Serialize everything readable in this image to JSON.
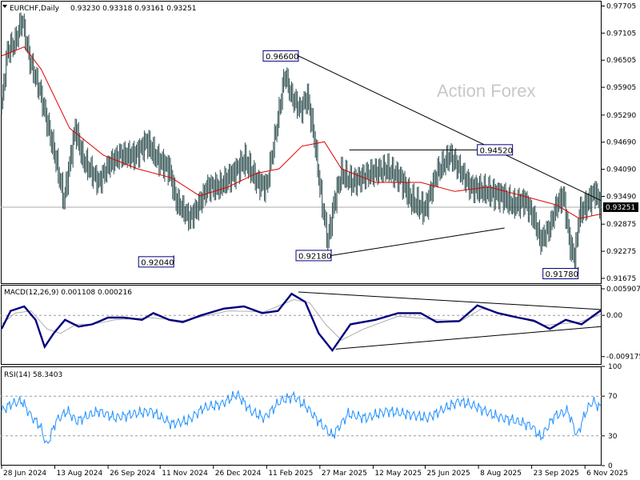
{
  "header": {
    "title": "EURCHF,Daily",
    "ohlc": "0.93230 0.93318 0.93161 0.93251"
  },
  "watermark": "Action Forex",
  "colors": {
    "candle": "#2f4f4f",
    "ma": "#e00000",
    "macd": "#00007f",
    "signal": "#b0b0b0",
    "rsi": "#1e90ff",
    "trend": "#000000",
    "annotation_box": "#00007f"
  },
  "chart_data": [
    {
      "type": "bar",
      "name": "price",
      "symbol": "EURCHF",
      "timeframe": "Daily",
      "ylim": [
        0.9155,
        0.9782
      ],
      "y_ticks": [
        "0.97705",
        "0.97105",
        "0.96505",
        "0.95905",
        "0.95290",
        "0.94690",
        "0.94090",
        "0.93490",
        "0.92875",
        "0.92275",
        "0.91675"
      ],
      "current_price": "0.93251",
      "x_ticks": [
        "28 Jun 2024",
        "13 Aug 2024",
        "26 Sep 2024",
        "11 Nov 2024",
        "26 Dec 2024",
        "11 Feb 2025",
        "27 Mar 2025",
        "12 May 2025",
        "25 Jun 2025",
        "8 Aug 2025",
        "23 Sep 2025",
        "6 Nov 2025"
      ],
      "anchors": [
        {
          "x": 0,
          "y": 0.955
        },
        {
          "x": 5,
          "y": 0.967
        },
        {
          "x": 12,
          "y": 0.969
        },
        {
          "x": 18,
          "y": 0.974
        },
        {
          "x": 25,
          "y": 0.965
        },
        {
          "x": 34,
          "y": 0.958
        },
        {
          "x": 48,
          "y": 0.943
        },
        {
          "x": 55,
          "y": 0.934
        },
        {
          "x": 65,
          "y": 0.95
        },
        {
          "x": 72,
          "y": 0.943
        },
        {
          "x": 86,
          "y": 0.938
        },
        {
          "x": 95,
          "y": 0.942
        },
        {
          "x": 104,
          "y": 0.944
        },
        {
          "x": 118,
          "y": 0.944
        },
        {
          "x": 128,
          "y": 0.947
        },
        {
          "x": 138,
          "y": 0.943
        },
        {
          "x": 148,
          "y": 0.941
        },
        {
          "x": 154,
          "y": 0.934
        },
        {
          "x": 160,
          "y": 0.932
        },
        {
          "x": 166,
          "y": 0.93
        },
        {
          "x": 172,
          "y": 0.932
        },
        {
          "x": 182,
          "y": 0.937
        },
        {
          "x": 192,
          "y": 0.937
        },
        {
          "x": 205,
          "y": 0.94
        },
        {
          "x": 215,
          "y": 0.943
        },
        {
          "x": 226,
          "y": 0.938
        },
        {
          "x": 234,
          "y": 0.937
        },
        {
          "x": 244,
          "y": 0.952
        },
        {
          "x": 250,
          "y": 0.962
        },
        {
          "x": 256,
          "y": 0.957
        },
        {
          "x": 264,
          "y": 0.954
        },
        {
          "x": 270,
          "y": 0.957
        },
        {
          "x": 276,
          "y": 0.948
        },
        {
          "x": 282,
          "y": 0.935
        },
        {
          "x": 288,
          "y": 0.925
        },
        {
          "x": 294,
          "y": 0.934
        },
        {
          "x": 300,
          "y": 0.94
        },
        {
          "x": 310,
          "y": 0.938
        },
        {
          "x": 325,
          "y": 0.94
        },
        {
          "x": 340,
          "y": 0.941
        },
        {
          "x": 352,
          "y": 0.939
        },
        {
          "x": 362,
          "y": 0.934
        },
        {
          "x": 374,
          "y": 0.932
        },
        {
          "x": 384,
          "y": 0.94
        },
        {
          "x": 396,
          "y": 0.944
        },
        {
          "x": 404,
          "y": 0.941
        },
        {
          "x": 414,
          "y": 0.937
        },
        {
          "x": 428,
          "y": 0.936
        },
        {
          "x": 442,
          "y": 0.935
        },
        {
          "x": 452,
          "y": 0.933
        },
        {
          "x": 462,
          "y": 0.934
        },
        {
          "x": 470,
          "y": 0.93
        },
        {
          "x": 476,
          "y": 0.925
        },
        {
          "x": 484,
          "y": 0.928
        },
        {
          "x": 490,
          "y": 0.933
        },
        {
          "x": 496,
          "y": 0.935
        },
        {
          "x": 502,
          "y": 0.924
        },
        {
          "x": 506,
          "y": 0.921
        },
        {
          "x": 510,
          "y": 0.931
        },
        {
          "x": 516,
          "y": 0.933
        },
        {
          "x": 524,
          "y": 0.936
        },
        {
          "x": 529,
          "y": 0.9325
        }
      ],
      "ma": [
        {
          "x": 0,
          "y": 0.966
        },
        {
          "x": 20,
          "y": 0.968
        },
        {
          "x": 35,
          "y": 0.963
        },
        {
          "x": 60,
          "y": 0.95
        },
        {
          "x": 90,
          "y": 0.944
        },
        {
          "x": 120,
          "y": 0.941
        },
        {
          "x": 150,
          "y": 0.939
        },
        {
          "x": 175,
          "y": 0.935
        },
        {
          "x": 200,
          "y": 0.937
        },
        {
          "x": 225,
          "y": 0.94
        },
        {
          "x": 245,
          "y": 0.941
        },
        {
          "x": 265,
          "y": 0.946
        },
        {
          "x": 285,
          "y": 0.947
        },
        {
          "x": 300,
          "y": 0.941
        },
        {
          "x": 330,
          "y": 0.938
        },
        {
          "x": 370,
          "y": 0.938
        },
        {
          "x": 400,
          "y": 0.936
        },
        {
          "x": 430,
          "y": 0.937
        },
        {
          "x": 460,
          "y": 0.935
        },
        {
          "x": 490,
          "y": 0.933
        },
        {
          "x": 510,
          "y": 0.93
        },
        {
          "x": 529,
          "y": 0.931
        }
      ],
      "annotations": [
        {
          "text": "0.96600",
          "x": 262,
          "y": 0.966,
          "side": "left"
        },
        {
          "text": "0.94520",
          "x": 420,
          "y": 0.9452,
          "side": "right"
        },
        {
          "text": "0.92040",
          "x": 152,
          "y": 0.9204,
          "side": "left"
        },
        {
          "text": "0.92180",
          "x": 291,
          "y": 0.9218,
          "side": "left"
        },
        {
          "text": "0.91780",
          "x": 509,
          "y": 0.9178,
          "side": "left"
        }
      ],
      "trendlines": [
        {
          "x1": 262,
          "y1": 0.966,
          "x2": 529,
          "y2": 0.934
        },
        {
          "x1": 291,
          "y1": 0.9218,
          "x2": 444,
          "y2": 0.9279
        },
        {
          "x1": 307,
          "y1": 0.9452,
          "x2": 420,
          "y2": 0.9452
        }
      ]
    },
    {
      "type": "line",
      "name": "MACD(12,26,9)",
      "label": "MACD(12,26,9) 0.001108 0.000216",
      "ylim": [
        -0.011,
        0.0068
      ],
      "y_ticks": [
        "0.005907",
        "0.00",
        "-0.009175"
      ],
      "macd": [
        {
          "x": 0,
          "y": -0.003
        },
        {
          "x": 8,
          "y": 0.001
        },
        {
          "x": 20,
          "y": 0.002
        },
        {
          "x": 30,
          "y": -0.001
        },
        {
          "x": 38,
          "y": -0.007
        },
        {
          "x": 46,
          "y": -0.004
        },
        {
          "x": 56,
          "y": -0.001
        },
        {
          "x": 68,
          "y": -0.0025
        },
        {
          "x": 80,
          "y": -0.002
        },
        {
          "x": 94,
          "y": -0.0005
        },
        {
          "x": 108,
          "y": -0.0005
        },
        {
          "x": 124,
          "y": -0.001
        },
        {
          "x": 134,
          "y": 0.0005
        },
        {
          "x": 148,
          "y": -0.001
        },
        {
          "x": 160,
          "y": -0.0015
        },
        {
          "x": 176,
          "y": 0.0
        },
        {
          "x": 196,
          "y": 0.0015
        },
        {
          "x": 214,
          "y": 0.002
        },
        {
          "x": 230,
          "y": 0.0005
        },
        {
          "x": 244,
          "y": 0.001
        },
        {
          "x": 256,
          "y": 0.0048
        },
        {
          "x": 268,
          "y": 0.003
        },
        {
          "x": 280,
          "y": -0.004
        },
        {
          "x": 292,
          "y": -0.0078
        },
        {
          "x": 308,
          "y": -0.002
        },
        {
          "x": 330,
          "y": -0.001
        },
        {
          "x": 350,
          "y": 0.0005
        },
        {
          "x": 370,
          "y": 0.0005
        },
        {
          "x": 384,
          "y": -0.0015
        },
        {
          "x": 404,
          "y": -0.0013
        },
        {
          "x": 420,
          "y": 0.0022
        },
        {
          "x": 438,
          "y": 0.0005
        },
        {
          "x": 456,
          "y": -0.0005
        },
        {
          "x": 470,
          "y": -0.0012
        },
        {
          "x": 484,
          "y": -0.003
        },
        {
          "x": 498,
          "y": -0.001
        },
        {
          "x": 512,
          "y": -0.002
        },
        {
          "x": 529,
          "y": 0.0011
        }
      ],
      "signal": [
        {
          "x": 0,
          "y": -0.002
        },
        {
          "x": 12,
          "y": 0.0005
        },
        {
          "x": 26,
          "y": 0.001
        },
        {
          "x": 40,
          "y": -0.003
        },
        {
          "x": 52,
          "y": -0.004
        },
        {
          "x": 66,
          "y": -0.002
        },
        {
          "x": 80,
          "y": -0.002
        },
        {
          "x": 100,
          "y": -0.001
        },
        {
          "x": 130,
          "y": -0.0005
        },
        {
          "x": 160,
          "y": -0.0012
        },
        {
          "x": 200,
          "y": 0.001
        },
        {
          "x": 232,
          "y": 0.0008
        },
        {
          "x": 258,
          "y": 0.0035
        },
        {
          "x": 272,
          "y": 0.0028
        },
        {
          "x": 286,
          "y": -0.002
        },
        {
          "x": 300,
          "y": -0.0055
        },
        {
          "x": 320,
          "y": -0.003
        },
        {
          "x": 350,
          "y": -0.0002
        },
        {
          "x": 385,
          "y": -0.001
        },
        {
          "x": 406,
          "y": -0.0012
        },
        {
          "x": 424,
          "y": 0.0015
        },
        {
          "x": 450,
          "y": 0.0
        },
        {
          "x": 480,
          "y": -0.0022
        },
        {
          "x": 510,
          "y": -0.0015
        },
        {
          "x": 529,
          "y": 0.0002
        }
      ],
      "trendlines": [
        {
          "x1": 262,
          "y1": 0.0052,
          "x2": 529,
          "y2": 0.0013
        },
        {
          "x1": 295,
          "y1": -0.0075,
          "x2": 529,
          "y2": -0.0025
        }
      ]
    },
    {
      "type": "line",
      "name": "RSI(14)",
      "label": "RSI(14) 58.3403",
      "ylim": [
        0,
        100
      ],
      "y_ticks": [
        "100",
        "70",
        "30",
        "0"
      ],
      "guides": [
        70,
        30
      ],
      "values": [
        {
          "x": 0,
          "y": 55
        },
        {
          "x": 8,
          "y": 62
        },
        {
          "x": 18,
          "y": 65
        },
        {
          "x": 26,
          "y": 50
        },
        {
          "x": 34,
          "y": 40
        },
        {
          "x": 40,
          "y": 20
        },
        {
          "x": 48,
          "y": 45
        },
        {
          "x": 58,
          "y": 55
        },
        {
          "x": 66,
          "y": 45
        },
        {
          "x": 76,
          "y": 50
        },
        {
          "x": 86,
          "y": 55
        },
        {
          "x": 100,
          "y": 48
        },
        {
          "x": 116,
          "y": 52
        },
        {
          "x": 132,
          "y": 55
        },
        {
          "x": 150,
          "y": 42
        },
        {
          "x": 164,
          "y": 45
        },
        {
          "x": 178,
          "y": 58
        },
        {
          "x": 194,
          "y": 62
        },
        {
          "x": 208,
          "y": 72
        },
        {
          "x": 220,
          "y": 55
        },
        {
          "x": 232,
          "y": 48
        },
        {
          "x": 246,
          "y": 65
        },
        {
          "x": 258,
          "y": 70
        },
        {
          "x": 270,
          "y": 58
        },
        {
          "x": 282,
          "y": 42
        },
        {
          "x": 292,
          "y": 30
        },
        {
          "x": 306,
          "y": 52
        },
        {
          "x": 322,
          "y": 48
        },
        {
          "x": 340,
          "y": 55
        },
        {
          "x": 358,
          "y": 52
        },
        {
          "x": 376,
          "y": 48
        },
        {
          "x": 392,
          "y": 58
        },
        {
          "x": 404,
          "y": 65
        },
        {
          "x": 418,
          "y": 60
        },
        {
          "x": 436,
          "y": 50
        },
        {
          "x": 454,
          "y": 45
        },
        {
          "x": 468,
          "y": 40
        },
        {
          "x": 476,
          "y": 28
        },
        {
          "x": 488,
          "y": 50
        },
        {
          "x": 500,
          "y": 55
        },
        {
          "x": 508,
          "y": 30
        },
        {
          "x": 516,
          "y": 55
        },
        {
          "x": 522,
          "y": 65
        },
        {
          "x": 529,
          "y": 58
        }
      ]
    }
  ]
}
